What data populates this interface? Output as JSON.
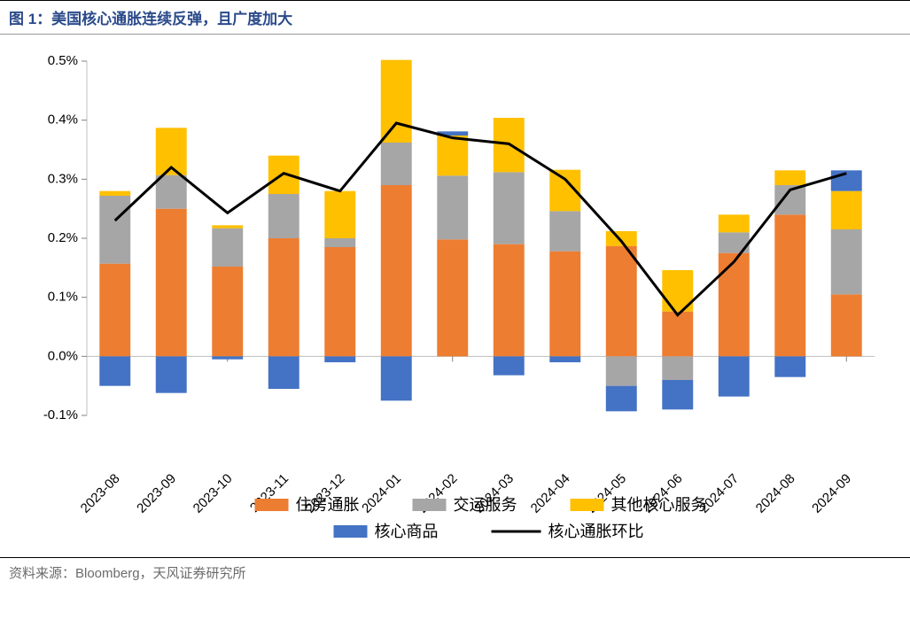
{
  "title": "图 1：美国核心通胀连续反弹，且广度加大",
  "source": "资料来源：Bloomberg，天风证券研究所",
  "chart": {
    "type": "stacked-bar-with-line",
    "categories": [
      "2023-08",
      "2023-09",
      "2023-10",
      "2023-11",
      "2023-12",
      "2024-01",
      "2024-02",
      "2024-03",
      "2024-04",
      "2024-05",
      "2024-06",
      "2024-07",
      "2024-08",
      "2024-09"
    ],
    "yaxis": {
      "min": -0.1,
      "max": 0.5,
      "tick_step": 0.1,
      "format": "percent_one_decimal"
    },
    "series": {
      "housing": {
        "label": "住房通胀",
        "color": "#ed7d31",
        "values": [
          0.157,
          0.25,
          0.152,
          0.2,
          0.185,
          0.29,
          0.198,
          0.19,
          0.178,
          0.187,
          0.076,
          0.175,
          0.24,
          0.105
        ]
      },
      "transport": {
        "label": "交运服务",
        "color": "#a6a6a6",
        "values": [
          0.115,
          0.057,
          0.065,
          0.075,
          0.015,
          0.072,
          0.108,
          0.122,
          0.068,
          -0.05,
          -0.04,
          0.035,
          0.05,
          0.11
        ]
      },
      "other_services": {
        "label": "其他核心服务",
        "color": "#ffc000",
        "values": [
          0.008,
          0.08,
          0.005,
          0.065,
          0.08,
          0.14,
          0.068,
          0.092,
          0.07,
          0.025,
          0.07,
          0.03,
          0.025,
          0.065
        ]
      },
      "core_goods": {
        "label": "核心商品",
        "color": "#4472c4",
        "values": [
          -0.05,
          -0.062,
          -0.005,
          -0.055,
          -0.01,
          -0.075,
          0.007,
          -0.032,
          -0.01,
          -0.043,
          -0.05,
          -0.068,
          -0.035,
          0.035
        ]
      }
    },
    "line": {
      "label": "核心通胀环比",
      "color": "#000000",
      "values": [
        0.23,
        0.32,
        0.243,
        0.31,
        0.28,
        0.395,
        0.37,
        0.36,
        0.3,
        0.195,
        0.07,
        0.16,
        0.282,
        0.31
      ]
    },
    "stack_order_pos": [
      "housing",
      "transport",
      "other_services",
      "core_goods"
    ],
    "bar_width_ratio": 0.55,
    "line_width": 3,
    "axis_color": "#bfbfbf",
    "tick_color": "#808080",
    "background": "#ffffff",
    "label_fontsize": 15,
    "legend_fontsize": 18
  },
  "legend_layout": [
    [
      "housing",
      "transport",
      "other_services"
    ],
    [
      "core_goods",
      "line"
    ]
  ]
}
